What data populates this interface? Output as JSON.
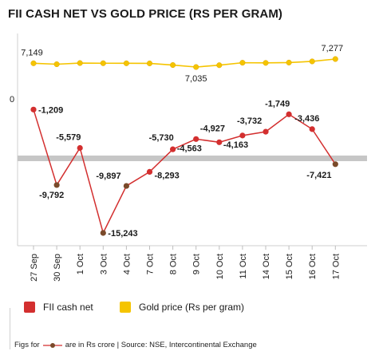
{
  "title": "FII CASH NET VS GOLD PRICE (RS PER GRAM)",
  "chart_data": {
    "type": "line",
    "categories": [
      "27 Sep",
      "30 Sep",
      "1 Oct",
      "3 Oct",
      "4 Oct",
      "7 Oct",
      "8 Oct",
      "9 Oct",
      "10 Oct",
      "11 Oct",
      "14 Oct",
      "15 Oct",
      "16 Oct",
      "17 Oct"
    ],
    "series": [
      {
        "name": "FII cash net",
        "color": "#d32f2f",
        "values": [
          -1209,
          -9792,
          -5579,
          -15243,
          -9897,
          -8293,
          -5730,
          -4563,
          -4927,
          -4163,
          -3732,
          -1749,
          -3436,
          -7421
        ]
      },
      {
        "name": "Gold price (Rs per gram)",
        "color": "#f5c400",
        "values": [
          7149,
          7120,
          7155,
          7150,
          7148,
          7145,
          7095,
          7035,
          7090,
          7165,
          7160,
          7170,
          7205,
          7277
        ]
      }
    ],
    "fii_zero_label": "0",
    "fii_ylim": [
      -17000,
      0
    ],
    "gold_ylim": [
      6600,
      7500
    ],
    "fii_label_show": [
      true,
      true,
      true,
      true,
      true,
      true,
      true,
      true,
      true,
      true,
      true,
      true,
      true,
      true
    ],
    "gold_labels": {
      "0": "7,149",
      "7": "7,035",
      "13": "7,277"
    },
    "fii_labels": [
      "-1,209",
      "-9,792",
      "-5,579",
      "-15,243",
      "-9,897",
      "-8,293",
      "-5,730",
      "-4,563",
      "-4,927",
      "-4,163",
      "-3,732",
      "-1,749",
      "-3,436",
      "-7,421"
    ],
    "grid": false,
    "legend_placement": "bottom"
  },
  "legend": {
    "fii_label": "FII cash net",
    "gold_label": "Gold price (Rs per gram)",
    "fii_color": "#d32f2f",
    "gold_color": "#f5c400"
  },
  "footnote": {
    "prefix": "Figs for",
    "suffix": "are in Rs crore | Source: NSE, Intercontinental Exchange"
  }
}
